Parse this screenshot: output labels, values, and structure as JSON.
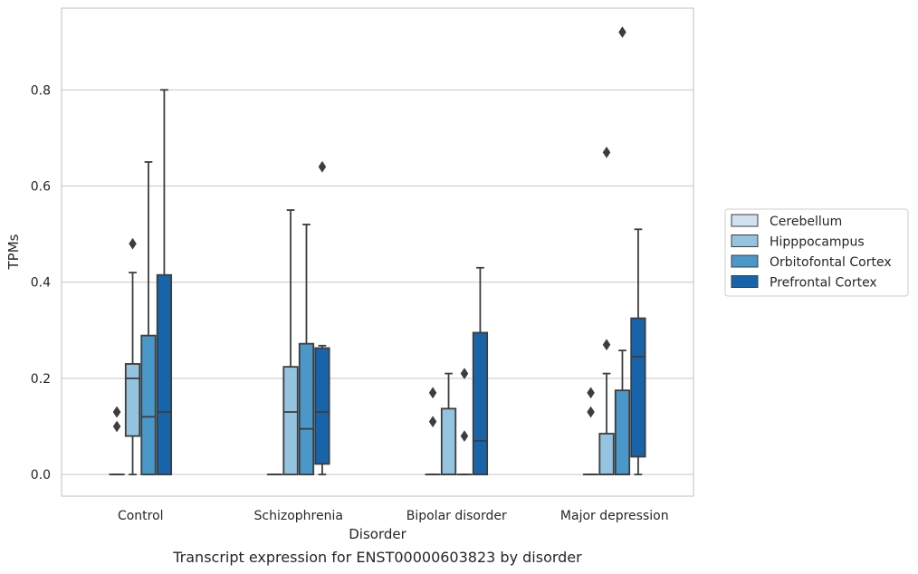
{
  "caption": "Transcript expression for ENST00000603823 by disorder",
  "chart_data": {
    "type": "box",
    "title": "",
    "xlabel": "Disorder",
    "ylabel": "TPMs",
    "ylim": [
      -0.045,
      0.97
    ],
    "yticks": [
      0.0,
      0.2,
      0.4,
      0.6,
      0.8
    ],
    "ytick_labels": [
      "0.0",
      "0.2",
      "0.4",
      "0.6",
      "0.8"
    ],
    "grid": "horizontal",
    "legend_position": "right",
    "categories": [
      "Control",
      "Schizophrenia",
      "Bipolar disorder",
      "Major depression"
    ],
    "series": [
      {
        "name": "Cerebellum",
        "color": "#d0e1f2",
        "boxes": [
          {
            "category": "Control",
            "whislo": 0.0,
            "q1": 0.0,
            "med": 0.0,
            "q3": 0.0,
            "whishi": 0.0,
            "fliers": [
              0.1,
              0.13,
              0.13
            ]
          },
          {
            "category": "Schizophrenia",
            "whislo": 0.0,
            "q1": 0.0,
            "med": 0.0,
            "q3": 0.0,
            "whishi": 0.0,
            "fliers": []
          },
          {
            "category": "Bipolar disorder",
            "whislo": 0.0,
            "q1": 0.0,
            "med": 0.0,
            "q3": 0.0,
            "whishi": 0.0,
            "fliers": [
              0.11,
              0.17
            ]
          },
          {
            "category": "Major depression",
            "whislo": 0.0,
            "q1": 0.0,
            "med": 0.0,
            "q3": 0.0,
            "whishi": 0.0,
            "fliers": [
              0.13,
              0.17
            ]
          }
        ]
      },
      {
        "name": "Hipppocampus",
        "color": "#94c4df",
        "boxes": [
          {
            "category": "Control",
            "whislo": 0.0,
            "q1": 0.08,
            "med": 0.2,
            "q3": 0.23,
            "whishi": 0.42,
            "fliers": [
              0.48
            ]
          },
          {
            "category": "Schizophrenia",
            "whislo": 0.0,
            "q1": 0.0,
            "med": 0.13,
            "q3": 0.224,
            "whishi": 0.55,
            "fliers": []
          },
          {
            "category": "Bipolar disorder",
            "whislo": 0.0,
            "q1": 0.0,
            "med": 0.0,
            "q3": 0.137,
            "whishi": 0.21,
            "fliers": []
          },
          {
            "category": "Major depression",
            "whislo": 0.0,
            "q1": 0.0,
            "med": 0.0,
            "q3": 0.085,
            "whishi": 0.21,
            "fliers": [
              0.27,
              0.67
            ]
          }
        ]
      },
      {
        "name": "Orbitofontal Cortex",
        "color": "#4a98c9",
        "boxes": [
          {
            "category": "Control",
            "whislo": 0.0,
            "q1": 0.0,
            "med": 0.12,
            "q3": 0.289,
            "whishi": 0.65,
            "fliers": []
          },
          {
            "category": "Schizophrenia",
            "whislo": 0.0,
            "q1": 0.0,
            "med": 0.095,
            "q3": 0.272,
            "whishi": 0.52,
            "fliers": []
          },
          {
            "category": "Bipolar disorder",
            "whislo": 0.0,
            "q1": 0.0,
            "med": 0.0,
            "q3": 0.0,
            "whishi": 0.0,
            "fliers": [
              0.08,
              0.21
            ]
          },
          {
            "category": "Major depression",
            "whislo": 0.0,
            "q1": 0.0,
            "med": 0.0,
            "q3": 0.175,
            "whishi": 0.258,
            "fliers": [
              0.92
            ]
          }
        ]
      },
      {
        "name": "Prefrontal Cortex",
        "color": "#1764ab",
        "boxes": [
          {
            "category": "Control",
            "whislo": 0.0,
            "q1": 0.0,
            "med": 0.13,
            "q3": 0.415,
            "whishi": 0.8,
            "fliers": []
          },
          {
            "category": "Schizophrenia",
            "whislo": 0.0,
            "q1": 0.022,
            "med": 0.13,
            "q3": 0.263,
            "whishi": 0.268,
            "fliers": [
              0.64
            ]
          },
          {
            "category": "Bipolar disorder",
            "whislo": 0.0,
            "q1": 0.0,
            "med": 0.07,
            "q3": 0.295,
            "whishi": 0.43,
            "fliers": []
          },
          {
            "category": "Major depression",
            "whislo": 0.0,
            "q1": 0.037,
            "med": 0.245,
            "q3": 0.325,
            "whishi": 0.51,
            "fliers": []
          }
        ]
      }
    ]
  }
}
